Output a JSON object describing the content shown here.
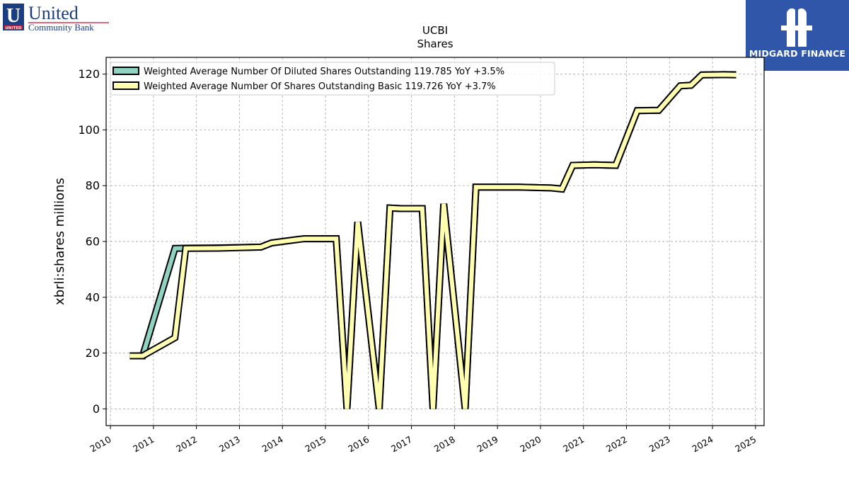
{
  "header": {
    "company_word1": "United",
    "company_word2": "Community Bank",
    "company_badge": "UNITED",
    "brand_name": "MIDGARD FINANCE"
  },
  "colors": {
    "series1": "#8fd3c3",
    "series2": "#ffffaf",
    "outline": "#000000",
    "company_blue": "#1b3d82",
    "company_red": "#c8102e",
    "brand_bg": "#2f56a8"
  },
  "chart_data": {
    "type": "line",
    "title": "UCBI",
    "subtitle": "Shares",
    "xlabel": "",
    "ylabel": "xbrli:shares millions",
    "xlim": [
      2009.9,
      2025.2
    ],
    "ylim": [
      -6,
      126
    ],
    "grid": true,
    "legend_position": "top-left",
    "x_ticks": [
      "2010",
      "2011",
      "2012",
      "2013",
      "2014",
      "2015",
      "2016",
      "2017",
      "2018",
      "2019",
      "2020",
      "2021",
      "2022",
      "2023",
      "2024",
      "2025"
    ],
    "y_ticks": [
      "0",
      "20",
      "40",
      "60",
      "80",
      "100",
      "120"
    ],
    "series": [
      {
        "name": "Weighted Average Number Of Diluted Shares Outstanding  119.785 YoY +3.5%",
        "points": [
          [
            2010.45,
            19.0
          ],
          [
            2010.75,
            19.0
          ],
          [
            2011.5,
            57.5
          ],
          [
            2011.75,
            57.6
          ],
          [
            2012.5,
            57.7
          ],
          [
            2013.5,
            58.0
          ],
          [
            2013.75,
            59.5
          ],
          [
            2014.25,
            60.5
          ],
          [
            2014.5,
            61.0
          ],
          [
            2015.25,
            61.0
          ],
          [
            2015.5,
            0
          ],
          [
            2015.75,
            67.0
          ],
          [
            2016.25,
            0
          ],
          [
            2016.5,
            72.0
          ],
          [
            2016.75,
            71.8
          ],
          [
            2017.25,
            71.8
          ],
          [
            2017.5,
            0
          ],
          [
            2017.75,
            73.5
          ],
          [
            2018.25,
            0
          ],
          [
            2018.5,
            79.5
          ],
          [
            2018.75,
            79.5
          ],
          [
            2019.5,
            79.5
          ],
          [
            2020.25,
            79.2
          ],
          [
            2020.5,
            78.8
          ],
          [
            2020.75,
            87.3
          ],
          [
            2021.25,
            87.5
          ],
          [
            2021.75,
            87.3
          ],
          [
            2022.25,
            106.9
          ],
          [
            2022.75,
            107.0
          ],
          [
            2023.25,
            115.8
          ],
          [
            2023.5,
            116.0
          ],
          [
            2023.75,
            119.7
          ],
          [
            2024.25,
            119.8
          ],
          [
            2024.55,
            119.785
          ]
        ]
      },
      {
        "name": "Weighted Average Number Of Shares Outstanding Basic  119.726 YoY +3.7%",
        "points": [
          [
            2010.45,
            19.0
          ],
          [
            2010.75,
            19.0
          ],
          [
            2011.5,
            25.5
          ],
          [
            2011.75,
            57.5
          ],
          [
            2012.5,
            57.6
          ],
          [
            2013.5,
            58.0
          ],
          [
            2013.75,
            59.5
          ],
          [
            2014.25,
            60.5
          ],
          [
            2014.5,
            61.0
          ],
          [
            2015.25,
            61.0
          ],
          [
            2015.5,
            0
          ],
          [
            2015.75,
            67.0
          ],
          [
            2016.25,
            0
          ],
          [
            2016.5,
            72.0
          ],
          [
            2016.75,
            71.8
          ],
          [
            2017.25,
            71.8
          ],
          [
            2017.5,
            0
          ],
          [
            2017.75,
            73.5
          ],
          [
            2018.25,
            0
          ],
          [
            2018.5,
            79.5
          ],
          [
            2018.75,
            79.5
          ],
          [
            2019.5,
            79.5
          ],
          [
            2020.25,
            79.2
          ],
          [
            2020.5,
            78.8
          ],
          [
            2020.75,
            87.3
          ],
          [
            2021.25,
            87.5
          ],
          [
            2021.75,
            87.3
          ],
          [
            2022.25,
            106.9
          ],
          [
            2022.75,
            107.0
          ],
          [
            2023.25,
            115.8
          ],
          [
            2023.5,
            116.0
          ],
          [
            2023.75,
            119.7
          ],
          [
            2024.25,
            119.8
          ],
          [
            2024.55,
            119.726
          ]
        ]
      }
    ]
  }
}
